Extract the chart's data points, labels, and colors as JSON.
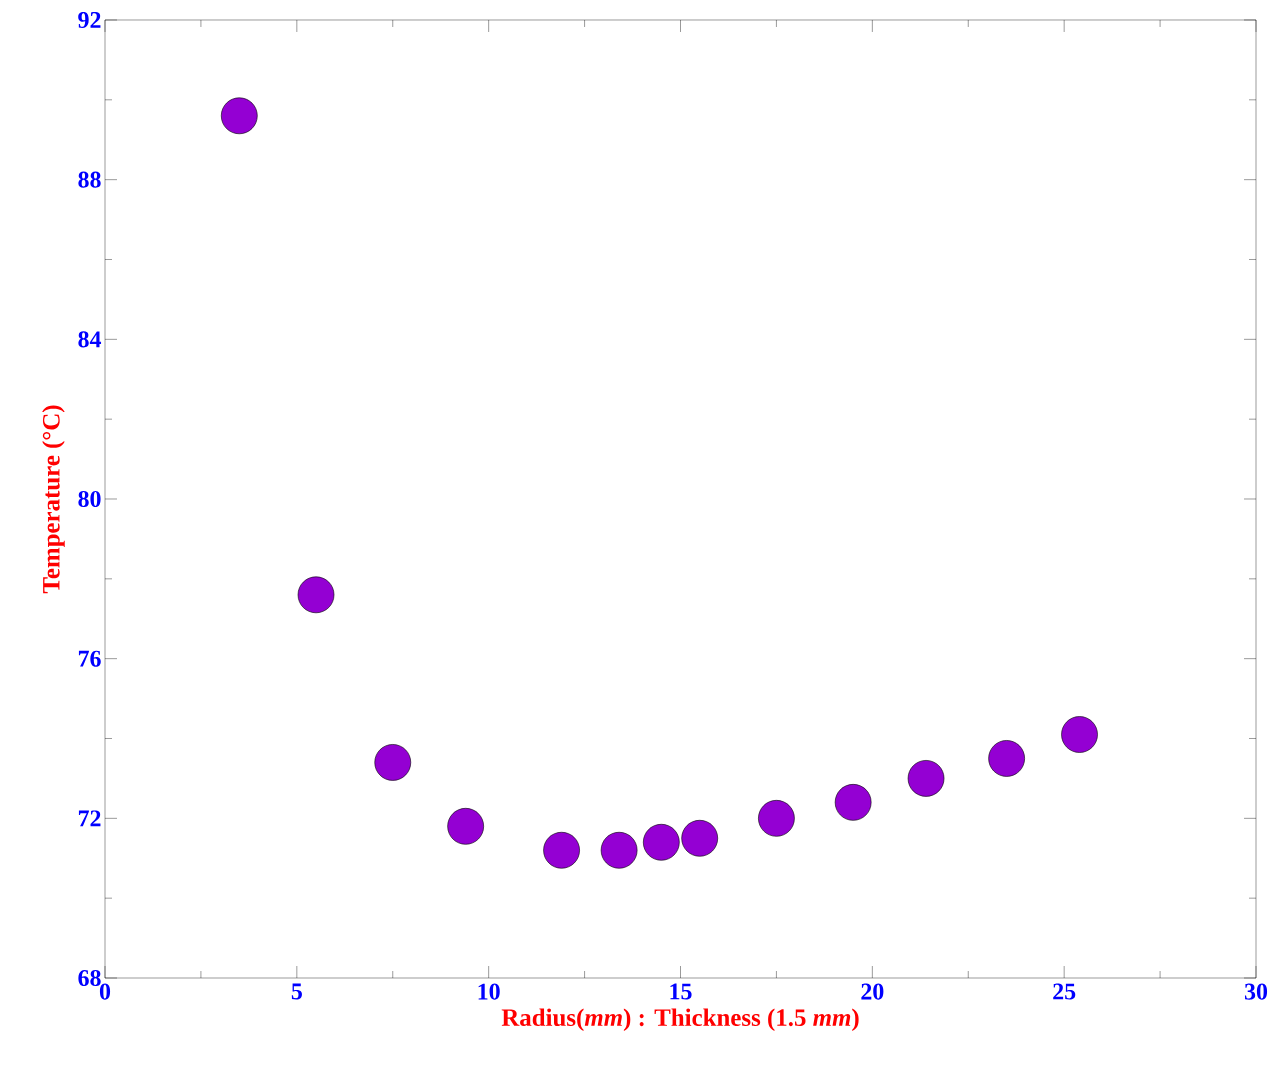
{
  "chart_data": {
    "type": "scatter",
    "xlabel": "Radius(*mm*)  : Thickness (1.5 *mm*)",
    "ylabel": "Temperature (°C)",
    "x": [
      3.5,
      5.5,
      7.5,
      9.4,
      11.9,
      13.4,
      14.5,
      15.5,
      17.5,
      19.5,
      21.4,
      23.5,
      25.4
    ],
    "values": [
      89.6,
      77.6,
      73.4,
      71.8,
      71.2,
      71.2,
      71.4,
      71.5,
      72.0,
      72.4,
      73.0,
      73.5,
      74.1
    ],
    "color": "#9400d3",
    "xlim": [
      0,
      30
    ],
    "ylim": [
      68,
      92
    ],
    "xticks": [
      0,
      {
        "value": 2.5,
        "label": null
      },
      5,
      {
        "value": 7.5,
        "label": null
      },
      10,
      {
        "value": 12.5,
        "label": null
      },
      15,
      {
        "value": 17.5,
        "label": null
      },
      20,
      {
        "value": 22.5,
        "label": null
      },
      25,
      {
        "value": 27.5,
        "label": null
      },
      30
    ],
    "yticks": [
      68,
      {
        "value": 70,
        "label": null
      },
      72,
      {
        "value": 74,
        "label": null
      },
      76,
      {
        "value": 78,
        "label": null
      },
      80,
      {
        "value": 82,
        "label": null
      },
      84,
      {
        "value": 86,
        "label": null
      },
      88,
      {
        "value": 90,
        "label": null
      },
      92
    ]
  }
}
